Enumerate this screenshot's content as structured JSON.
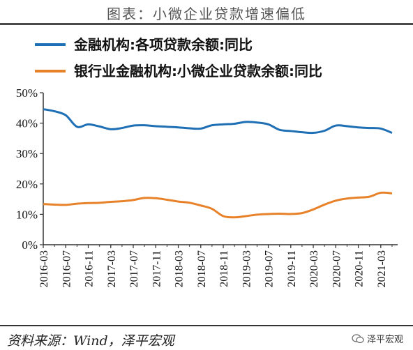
{
  "header": {
    "title": "图表：小微企业贷款增速偏低"
  },
  "footer": {
    "source": "资料来源：Wind，泽平宏观",
    "watermark": "泽平宏观"
  },
  "chart_data": {
    "type": "line",
    "title": "图表：小微企业贷款增速偏低",
    "xlabel": "",
    "ylabel": "",
    "ylim": [
      0,
      50
    ],
    "yticks": [
      "0%",
      "10%",
      "20%",
      "30%",
      "40%",
      "50%"
    ],
    "x_tick_labels": [
      "2016-03",
      "2016-07",
      "2016-11",
      "2017-03",
      "2017-07",
      "2017-11",
      "2018-03",
      "2018-07",
      "2018-11",
      "2019-03",
      "2019-07",
      "2019-11",
      "2020-03",
      "2020-07",
      "2020-11",
      "2021-03"
    ],
    "legend_position": "top",
    "grid": false,
    "x": [
      "2016-03",
      "2016-05",
      "2016-07",
      "2016-09",
      "2016-11",
      "2017-01",
      "2017-03",
      "2017-05",
      "2017-07",
      "2017-09",
      "2017-11",
      "2018-01",
      "2018-03",
      "2018-05",
      "2018-07",
      "2018-09",
      "2018-11",
      "2019-01",
      "2019-03",
      "2019-05",
      "2019-07",
      "2019-09",
      "2019-11",
      "2020-01",
      "2020-03",
      "2020-05",
      "2020-07",
      "2020-09",
      "2020-11",
      "2021-01",
      "2021-03",
      "2021-05"
    ],
    "series": [
      {
        "name": "金融机构:各项贷款余额:同比",
        "color": "#1f6fb5",
        "values": [
          44.6,
          43.9,
          42.6,
          38.8,
          39.6,
          38.9,
          38.0,
          38.4,
          39.2,
          39.3,
          39.0,
          38.8,
          38.6,
          38.3,
          38.2,
          39.3,
          39.6,
          39.8,
          40.4,
          40.2,
          39.6,
          37.8,
          37.4,
          37.0,
          36.8,
          37.5,
          39.2,
          39.0,
          38.6,
          38.4,
          38.2,
          36.8
        ]
      },
      {
        "name": "银行业金融机构:小微企业贷款余额:同比",
        "color": "#e8822a",
        "values": [
          13.4,
          13.2,
          13.1,
          13.5,
          13.7,
          13.8,
          14.1,
          14.3,
          14.7,
          15.4,
          15.3,
          14.8,
          14.2,
          13.8,
          12.9,
          11.8,
          9.4,
          9.0,
          9.4,
          9.9,
          10.1,
          10.2,
          10.1,
          10.4,
          11.6,
          13.2,
          14.5,
          15.2,
          15.5,
          15.8,
          17.1,
          16.9
        ]
      }
    ]
  }
}
